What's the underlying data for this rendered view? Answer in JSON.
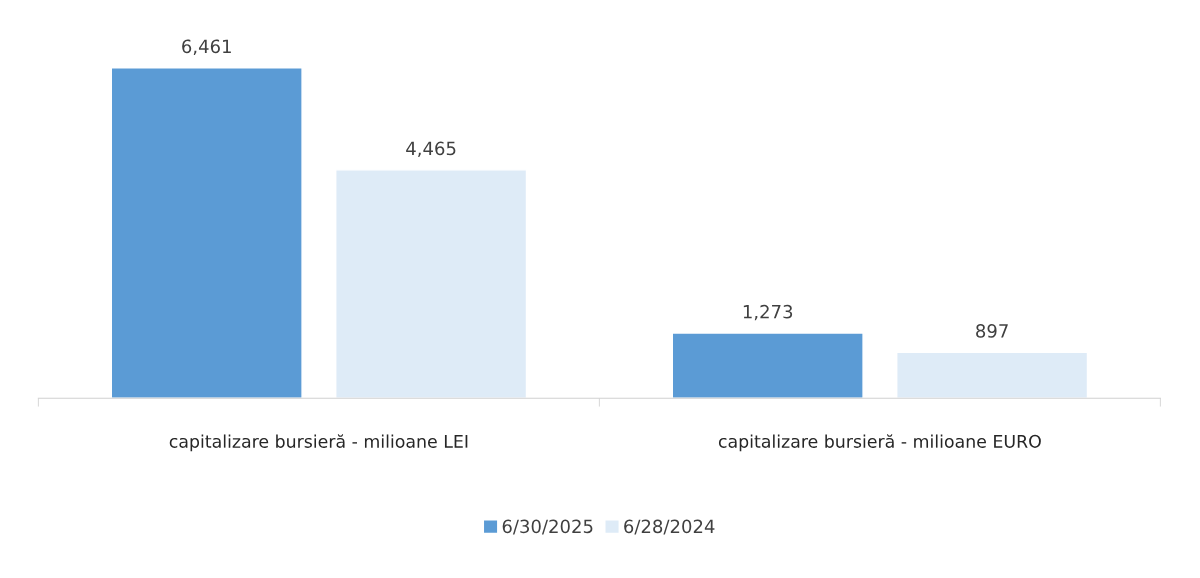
{
  "chart_data": {
    "type": "bar",
    "categories": [
      "capitalizare bursieră - milioane LEI",
      "capitalizare bursieră - milioane EURO"
    ],
    "series": [
      {
        "name": "6/30/2025",
        "color": "#5b9bd5",
        "values": [
          6461,
          1273
        ],
        "value_labels": [
          "6,461",
          "1,273"
        ]
      },
      {
        "name": "6/28/2024",
        "color": "#deebf7",
        "values": [
          4465,
          897
        ],
        "value_labels": [
          "4,465",
          "897"
        ]
      }
    ],
    "legend": "bottom",
    "grid": false
  }
}
